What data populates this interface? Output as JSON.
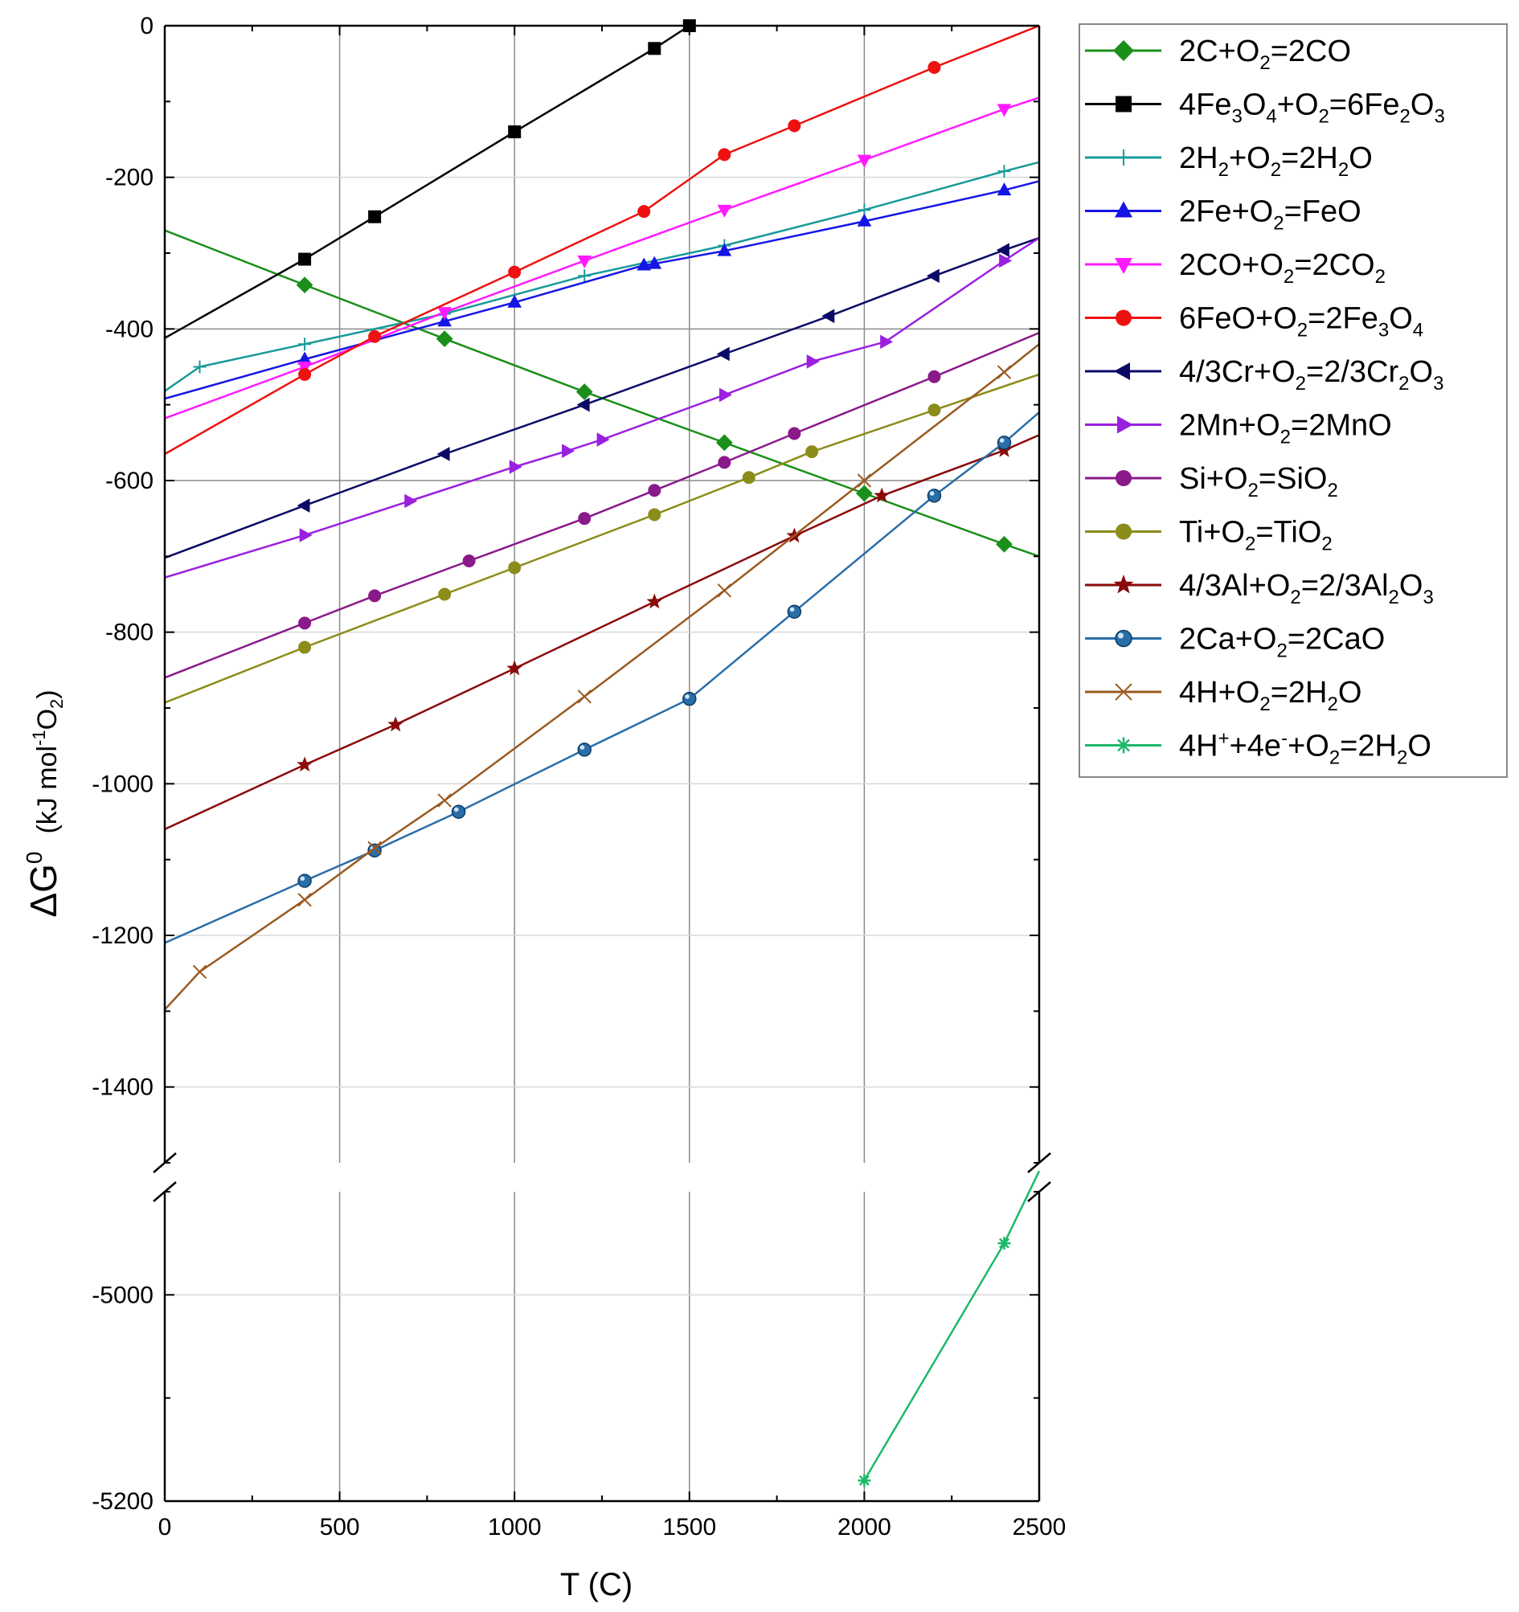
{
  "chart_data": {
    "type": "line",
    "title": "",
    "xlabel": "T (C)",
    "ylabel": "ΔG⁰ (kJ mol⁻¹O₂)",
    "ylabel_parts": {
      "symbol": "ΔG",
      "superscript": "0",
      "units_a": "(kJ mol",
      "units_sup": "-1",
      "units_b": "O",
      "units_sub": "2",
      "units_c": ")"
    },
    "xlim": [
      0,
      2500
    ],
    "ylim_upper": [
      -1500,
      0
    ],
    "ylim_lower": [
      -5200,
      -4900
    ],
    "axis_break": "y-axis broken between -1500 and -4900",
    "x_ticks": [
      "0",
      "500",
      "1000",
      "1500",
      "2000",
      "2500"
    ],
    "y_ticks_upper": [
      "0",
      "-200",
      "-400",
      "-600",
      "-800",
      "-1000",
      "-1200",
      "-1400"
    ],
    "y_ticks_lower": [
      "-5000",
      "-5200"
    ],
    "grid": true,
    "legend_position": "outside-right",
    "series": [
      {
        "name": "2C+O2=2CO",
        "label": [
          [
            "2C+O",
            "n"
          ],
          [
            "2",
            "sub"
          ],
          [
            "=2CO",
            "n"
          ]
        ],
        "color": "#1a8f1a",
        "marker": "diamond",
        "x": [
          0,
          400,
          800,
          1200,
          1600,
          2000,
          2400,
          2500
        ],
        "y": [
          -270,
          -342,
          -413,
          -483,
          -550,
          -617,
          -684,
          -700
        ]
      },
      {
        "name": "4Fe3O4+O2=6Fe2O3",
        "label": [
          [
            "4Fe",
            "n"
          ],
          [
            "3",
            "sub"
          ],
          [
            "O",
            "n"
          ],
          [
            "4",
            "sub"
          ],
          [
            "+O",
            "n"
          ],
          [
            "2",
            "sub"
          ],
          [
            "=6Fe",
            "n"
          ],
          [
            "2",
            "sub"
          ],
          [
            "O",
            "n"
          ],
          [
            "3",
            "sub"
          ]
        ],
        "color": "#000000",
        "marker": "square",
        "x": [
          0,
          400,
          600,
          1000,
          1400,
          1500
        ],
        "y": [
          -412,
          -308,
          -252,
          -140,
          -30,
          0
        ]
      },
      {
        "name": "2H2+O2=2H2O",
        "label": [
          [
            "2H",
            "n"
          ],
          [
            "2",
            "sub"
          ],
          [
            "+O",
            "n"
          ],
          [
            "2",
            "sub"
          ],
          [
            "=2H",
            "n"
          ],
          [
            "2",
            "sub"
          ],
          [
            "O",
            "n"
          ]
        ],
        "color": "#1a9a9a",
        "marker": "plus",
        "x": [
          0,
          100,
          400,
          800,
          1200,
          1600,
          2000,
          2400,
          2500
        ],
        "y": [
          -482,
          -450,
          -420,
          -380,
          -330,
          -290,
          -243,
          -192,
          -180
        ]
      },
      {
        "name": "2Fe+O2=FeO",
        "label": [
          [
            "2Fe+O",
            "n"
          ],
          [
            "2",
            "sub"
          ],
          [
            "=FeO",
            "n"
          ]
        ],
        "color": "#1515e6",
        "marker": "triangle-up",
        "x": [
          0,
          400,
          800,
          1000,
          1370,
          1400,
          1600,
          2000,
          2400,
          2500
        ],
        "y": [
          -492,
          -440,
          -390,
          -365,
          -316,
          -314,
          -297,
          -258,
          -217,
          -205
        ]
      },
      {
        "name": "2CO+O2=2CO2",
        "label": [
          [
            "2CO+O",
            "n"
          ],
          [
            "2",
            "sub"
          ],
          [
            "=2CO",
            "n"
          ],
          [
            "2",
            "sub"
          ]
        ],
        "color": "#ff1aff",
        "marker": "triangle-down",
        "x": [
          0,
          400,
          800,
          1200,
          1600,
          2000,
          2400,
          2500
        ],
        "y": [
          -518,
          -450,
          -378,
          -310,
          -243,
          -177,
          -110,
          -95
        ]
      },
      {
        "name": "6FeO+O2=2Fe3O4",
        "label": [
          [
            "6FeO+O",
            "n"
          ],
          [
            "2",
            "sub"
          ],
          [
            "=2Fe",
            "n"
          ],
          [
            "3",
            "sub"
          ],
          [
            "O",
            "n"
          ],
          [
            "4",
            "sub"
          ]
        ],
        "color": "#ee1111",
        "marker": "circle",
        "x": [
          0,
          400,
          600,
          1000,
          1370,
          1600,
          1800,
          2200,
          2500
        ],
        "y": [
          -565,
          -460,
          -410,
          -325,
          -245,
          -170,
          -132,
          -55,
          0
        ]
      },
      {
        "name": "4/3Cr+O2=2/3Cr2O3",
        "label": [
          [
            "4/3Cr+O",
            "n"
          ],
          [
            "2",
            "sub"
          ],
          [
            "=2/3Cr",
            "n"
          ],
          [
            "2",
            "sub"
          ],
          [
            "O",
            "n"
          ],
          [
            "3",
            "sub"
          ]
        ],
        "color": "#0a0a66",
        "marker": "triangle-left",
        "x": [
          0,
          400,
          800,
          1200,
          1600,
          1900,
          2200,
          2400,
          2500
        ],
        "y": [
          -702,
          -633,
          -565,
          -500,
          -433,
          -383,
          -330,
          -296,
          -280
        ]
      },
      {
        "name": "2Mn+O2=2MnO",
        "label": [
          [
            "2Mn+O",
            "n"
          ],
          [
            "2",
            "sub"
          ],
          [
            "=2MnO",
            "n"
          ]
        ],
        "color": "#9a20e0",
        "marker": "triangle-right",
        "x": [
          0,
          400,
          700,
          1000,
          1150,
          1250,
          1600,
          1850,
          2060,
          2400,
          2500
        ],
        "y": [
          -728,
          -672,
          -627,
          -582,
          -561,
          -546,
          -487,
          -443,
          -417,
          -310,
          -280
        ]
      },
      {
        "name": "Si+O2=SiO2",
        "label": [
          [
            "Si+O",
            "n"
          ],
          [
            "2",
            "sub"
          ],
          [
            "=SiO",
            "n"
          ],
          [
            "2",
            "sub"
          ]
        ],
        "color": "#8a1a8a",
        "marker": "circle",
        "x": [
          0,
          400,
          600,
          870,
          1200,
          1400,
          1600,
          1800,
          2200,
          2500
        ],
        "y": [
          -860,
          -788,
          -752,
          -706,
          -650,
          -613,
          -576,
          -538,
          -463,
          -405
        ]
      },
      {
        "name": "Ti+O2=TiO2",
        "label": [
          [
            "Ti+O",
            "n"
          ],
          [
            "2",
            "sub"
          ],
          [
            "=TiO",
            "n"
          ],
          [
            "2",
            "sub"
          ]
        ],
        "color": "#8c8c1a",
        "marker": "circle",
        "x": [
          0,
          400,
          800,
          1000,
          1400,
          1670,
          1850,
          2200,
          2500
        ],
        "y": [
          -893,
          -820,
          -750,
          -715,
          -645,
          -596,
          -562,
          -507,
          -460
        ]
      },
      {
        "name": "4/3Al+O2=2/3Al2O3",
        "label": [
          [
            "4/3Al+O",
            "n"
          ],
          [
            "2",
            "sub"
          ],
          [
            "=2/3Al",
            "n"
          ],
          [
            "2",
            "sub"
          ],
          [
            "O",
            "n"
          ],
          [
            "3",
            "sub"
          ]
        ],
        "color": "#8b0a0a",
        "marker": "star",
        "x": [
          0,
          400,
          660,
          1000,
          1400,
          1800,
          2050,
          2400,
          2500
        ],
        "y": [
          -1060,
          -975,
          -922,
          -848,
          -760,
          -673,
          -620,
          -560,
          -540
        ]
      },
      {
        "name": "2Ca+O2=2CaO",
        "label": [
          [
            "2Ca+O",
            "n"
          ],
          [
            "2",
            "sub"
          ],
          [
            "=2CaO",
            "n"
          ]
        ],
        "color": "#2a6ea8",
        "marker": "ball",
        "x": [
          0,
          400,
          600,
          840,
          1200,
          1500,
          1800,
          2200,
          2400,
          2500
        ],
        "y": [
          -1210,
          -1128,
          -1088,
          -1037,
          -955,
          -888,
          -773,
          -620,
          -550,
          -510
        ]
      },
      {
        "name": "4H+O2=2H2O",
        "label": [
          [
            "4H+O",
            "n"
          ],
          [
            "2",
            "sub"
          ],
          [
            "=2H",
            "n"
          ],
          [
            "2",
            "sub"
          ],
          [
            "O",
            "n"
          ]
        ],
        "color": "#9a5a20",
        "marker": "x",
        "x": [
          0,
          100,
          400,
          600,
          800,
          1200,
          1600,
          2000,
          2400,
          2500
        ],
        "y": [
          -1298,
          -1248,
          -1153,
          -1085,
          -1022,
          -885,
          -745,
          -600,
          -457,
          -420
        ]
      },
      {
        "name": "4H++4e-+O2=2H2O",
        "label": [
          [
            "4H",
            "n"
          ],
          [
            "+",
            "sup"
          ],
          [
            "+4e",
            "n"
          ],
          [
            "-",
            "sup"
          ],
          [
            "+O",
            "n"
          ],
          [
            "2",
            "sub"
          ],
          [
            "=2H",
            "n"
          ],
          [
            "2",
            "sub"
          ],
          [
            "O",
            "n"
          ]
        ],
        "color": "#1db86b",
        "marker": "asterisk",
        "x": [
          2000,
          2400,
          2500
        ],
        "y": [
          -5180,
          -4950,
          -4880
        ]
      }
    ]
  }
}
